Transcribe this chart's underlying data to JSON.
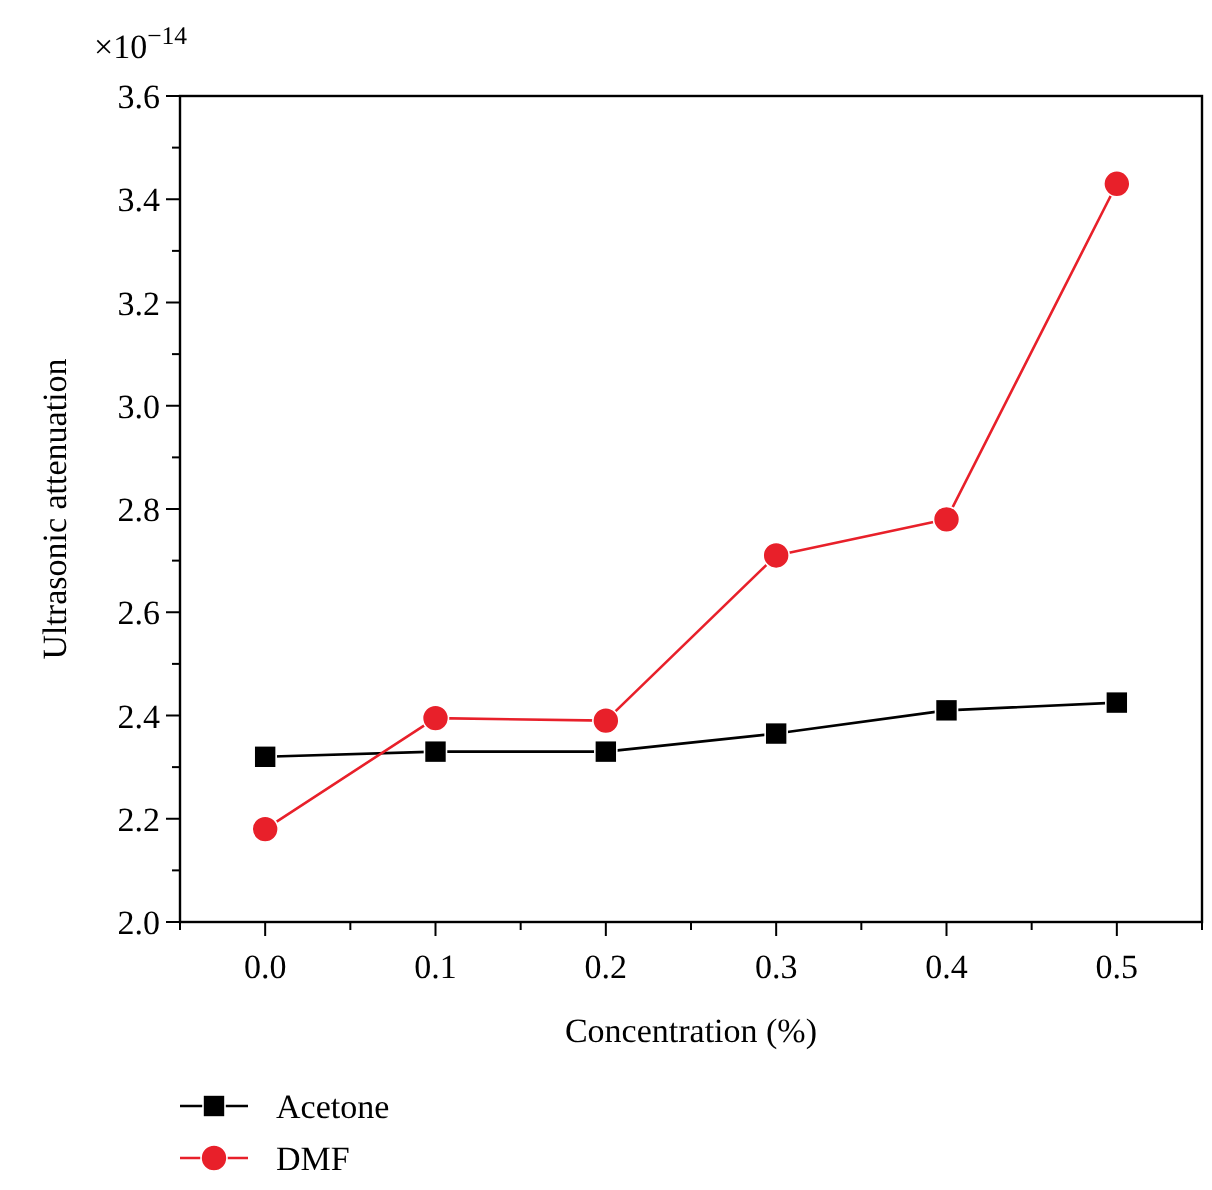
{
  "chart_data": {
    "type": "line",
    "xlabel": "Concentration (%)",
    "ylabel": "Ultrasonic attenuation",
    "annotations": [
      "×10$^{−14}$"
    ],
    "x": [
      0.0,
      0.1,
      0.2,
      0.3,
      0.4,
      0.5
    ],
    "xlim": [
      -0.05,
      0.55
    ],
    "xticks": [
      {
        "value": -0.05,
        "label": null
      },
      {
        "value": 0,
        "label": "0.0"
      },
      {
        "value": 0.05,
        "label": null
      },
      0.1,
      {
        "value": 0.15,
        "label": null
      },
      0.2,
      {
        "value": 0.25,
        "label": null
      },
      0.3,
      {
        "value": 0.35,
        "label": null
      },
      0.4,
      {
        "value": 0.45,
        "label": null
      },
      0.5,
      {
        "value": 0.55,
        "label": null
      }
    ],
    "ylim": [
      2.0,
      3.6
    ],
    "yticks": [
      {
        "value": 2,
        "label": "2.0"
      },
      {
        "value": 2.1,
        "label": null
      },
      2.2,
      {
        "value": 2.3,
        "label": null
      },
      2.4,
      {
        "value": 2.5,
        "label": null
      },
      2.6,
      {
        "value": 2.7,
        "label": null
      },
      2.8,
      {
        "value": 2.9,
        "label": null
      },
      {
        "value": 3,
        "label": "3.0"
      },
      {
        "value": 3.1,
        "label": null
      },
      3.2,
      {
        "value": 3.3,
        "label": null
      },
      3.4,
      {
        "value": 3.5,
        "label": null
      },
      3.6
    ],
    "legend": "bottom left",
    "grid": false,
    "line_style": "solid",
    "series": [
      {
        "name": "Acetone",
        "color": "#000000",
        "marker": "square",
        "values": [
          2.32,
          2.33,
          2.33,
          2.365,
          2.41,
          2.425
        ]
      },
      {
        "name": "DMF",
        "color": "#e8202a",
        "marker": "circle",
        "values": [
          2.18,
          2.395,
          2.39,
          2.71,
          2.78,
          3.43
        ]
      }
    ]
  }
}
